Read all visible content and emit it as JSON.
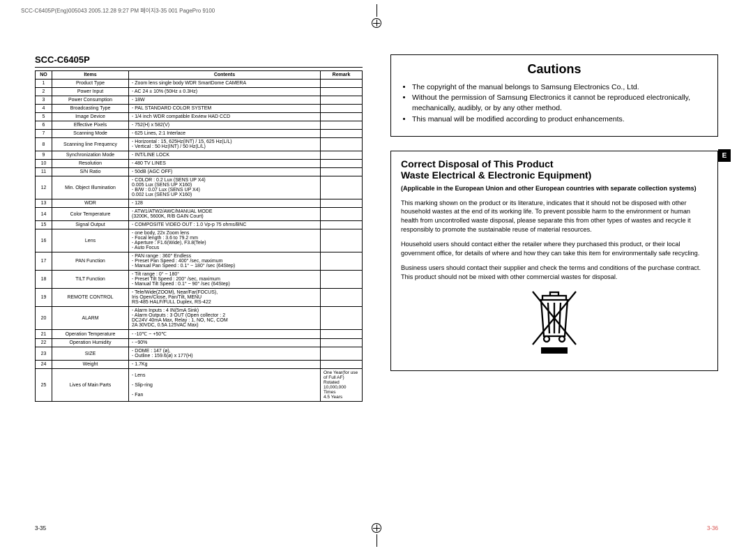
{
  "header_line": "SCC-C6405P(Eng)005043  2005.12.28 9:27 PM  페이지3-35   001 PagePro 9100",
  "left": {
    "title": "SCC-C6405P",
    "table": {
      "cols": [
        "NO",
        "Items",
        "Contents",
        "Remark"
      ],
      "rows": [
        {
          "no": "1",
          "item": "Product Type",
          "content": "- Zoom lens single body  WDR SmartDome CAMERA",
          "remark": ""
        },
        {
          "no": "2",
          "item": "Power Input",
          "content": "- AC 24 ± 10% (50Hz ± 0.3Hz)",
          "remark": ""
        },
        {
          "no": "3",
          "item": "Power Consumption",
          "content": "- 18W",
          "remark": ""
        },
        {
          "no": "4",
          "item": "Broadcasting Type",
          "content": "- PAL STANDARD COLOR SYSTEM",
          "remark": ""
        },
        {
          "no": "5",
          "item": "Image Device",
          "content": "- 1/4 inch WDR compatible Exview HAD CCD",
          "remark": ""
        },
        {
          "no": "6",
          "item": "Effective Pixels",
          "content": "- 752(H) x 582(V)",
          "remark": ""
        },
        {
          "no": "7",
          "item": "Scanning Mode",
          "content": "- 625 Lines, 2:1 Interlace",
          "remark": ""
        },
        {
          "no": "8",
          "item": "Scanning line Frequency",
          "content": "- Horizontal : 15, 625Hz(INT) / 15, 625 Hz(L/L)\n- Vertical      : 50 Hz(INT) / 50 Hz(L/L)",
          "remark": ""
        },
        {
          "no": "9",
          "item": "Synchronization Mode",
          "content": "- INT/LINE LOCK",
          "remark": ""
        },
        {
          "no": "10",
          "item": "Resolution",
          "content": "- 480 TV LINES",
          "remark": ""
        },
        {
          "no": "11",
          "item": "S/N Ratio",
          "content": "- 50dB (AGC OFF)",
          "remark": ""
        },
        {
          "no": "12",
          "item": "Min. Object Illumination",
          "content": "- COLOR : 0.2 Lux (SENS UP X4)\n                 0.005 Lux (SENS UP X160)\n- B/W       : 0.07 Lux (SENS UP X4)\n                 0.002 Lux (SENS UP X160)",
          "remark": ""
        },
        {
          "no": "13",
          "item": "WDR",
          "content": "- 128",
          "remark": ""
        },
        {
          "no": "14",
          "item": "Color Temperature",
          "content": "- ATW1/ATW2/AWC/MANUAL MODE\n  (3200K, 5600K, R/B GAIN Court)",
          "remark": ""
        },
        {
          "no": "15",
          "item": "Signal Output",
          "content": "- COMPOSITE VIDEO OUT : 1.0 Vp-p 75 ohms/BNC",
          "remark": ""
        },
        {
          "no": "16",
          "item": "Lens",
          "content": "- one body, 22x Zoom lens\n- Focal length : 3.6 to 79.2 mm\n- Aperture : F1.6(Wide), F3.8(Tele)\n- Auto Focus",
          "remark": ""
        },
        {
          "no": "17",
          "item": "PAN Function",
          "content": "- PAN range : 360° Endless\n- Preset Pan Speed : 400° /sec, maximum\n- Manual Pan Speed : 0.1° ~ 180° /sec (64Step)",
          "remark": ""
        },
        {
          "no": "18",
          "item": "TILT Function",
          "content": "- Tilt range : 0° ~ 180°\n- Preset Tilt Speed : 200° /sec, maximum\n- Manual Tilt Speed : 0.1° ~ 90° /sec (64Step)",
          "remark": ""
        },
        {
          "no": "19",
          "item": "REMOTE CONTROL",
          "content": "- Tele/Wide(ZOOM), Near/Far(FOCUS),\n  Iris Open/Close, Pan/Tilt, MENU\n  RS-485 HALF/FULL Duplex, RS-422",
          "remark": ""
        },
        {
          "no": "20",
          "item": "ALARM",
          "content": "- Alarm Inputs : 4 IN(5mA Sink)\n- Alarm Outputs : 3 OUT (Open collector : 2\n  DC24V 40mA Max, Relay : 1, NO, NC, COM\n  2A 30VDC, 0.5A 125VAC Max)",
          "remark": ""
        },
        {
          "no": "21",
          "item": "Operation Temperature",
          "content": "- -10℃  ~ +50℃",
          "remark": ""
        },
        {
          "no": "22",
          "item": "Operation Humidity",
          "content": "- ~90%",
          "remark": ""
        },
        {
          "no": "23",
          "item": "SIZE",
          "content": "- DOME : 147 (ø),\n- Outline : 159.6(ø) x 177(H)",
          "remark": ""
        },
        {
          "no": "24",
          "item": "Weight",
          "content": "- 1.7Kg",
          "remark": ""
        },
        {
          "no": "25",
          "item": "Lives of Main Parts",
          "content": "- Lens\n\n- Slip-ring\n\n- Fan",
          "remark": "One Year(for use of Full AF)\nRotated 10,000,000 Times\n4.5 Years"
        }
      ]
    },
    "page_num": "3-35"
  },
  "right": {
    "cautions_title": "Cautions",
    "cautions": [
      "The copyright of the manual belongs to Samsung Electronics Co., Ltd.",
      "Without the permission of Samsung Electronics it cannot be reproduced electronically, mechanically, audibly, or by any other method.",
      "This manual will be modified according to product enhancements."
    ],
    "e_tab": "E",
    "disposal_title1": "Correct Disposal of This Product",
    "disposal_title2": "Waste Electrical & Electronic Equipment)",
    "disposal_sub": "(Applicable in the European Union and other European countries with separate collection systems)",
    "disposal_p1": "This marking shown on the product or its literature, indicates that it should not be disposed with other household wastes at the end of its working life.  To prevent possible harm to the environment or human health from uncontrolled waste disposal, please separate this from other types of wastes and recycle it responsibly to promote the sustainable reuse of material resources.",
    "disposal_p2": "Household users should contact either the retailer where they purchased this product, or their local government office, for details of where and how they can take this item for environmentally safe recycling.",
    "disposal_p3": "Business users should contact their supplier and check the terms and conditions of the purchase contract. This product should not be mixed with other commercial wastes for disposal.",
    "page_num": "3-36"
  }
}
